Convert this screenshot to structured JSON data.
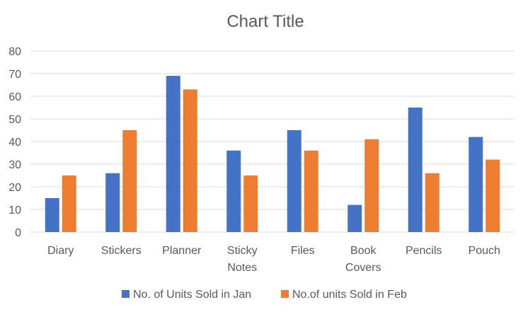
{
  "chart_data": {
    "type": "bar",
    "title": "Chart Title",
    "categories": [
      "Diary",
      "Stickers",
      "Planner",
      "Sticky Notes",
      "Files",
      "Book Covers",
      "Pencils",
      "Pouch"
    ],
    "category_lines": [
      [
        "Diary"
      ],
      [
        "Stickers"
      ],
      [
        "Planner"
      ],
      [
        "Sticky",
        "Notes"
      ],
      [
        "Files"
      ],
      [
        "Book",
        "Covers"
      ],
      [
        "Pencils"
      ],
      [
        "Pouch"
      ]
    ],
    "series": [
      {
        "name": "No. of Units Sold in Jan",
        "color": "#4472c4",
        "values": [
          15,
          26,
          69,
          36,
          45,
          12,
          55,
          42
        ]
      },
      {
        "name": "No.of units Sold in Feb",
        "color": "#ed7d31",
        "values": [
          25,
          45,
          63,
          25,
          36,
          41,
          26,
          32
        ]
      }
    ],
    "yticks": [
      0,
      10,
      20,
      30,
      40,
      50,
      60,
      70,
      80
    ],
    "ylim": [
      0,
      80
    ],
    "xlabel": "",
    "ylabel": "",
    "grid": true,
    "legend_position": "bottom"
  }
}
